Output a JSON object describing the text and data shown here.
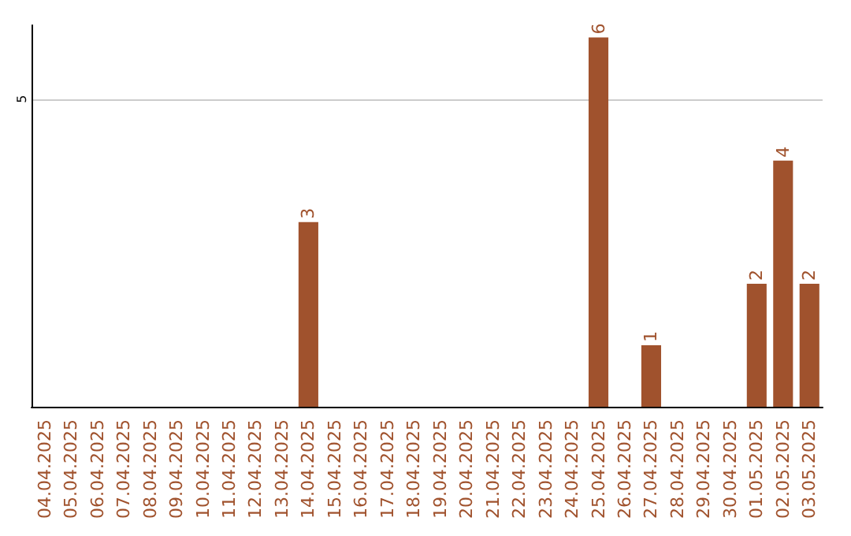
{
  "chart_data": {
    "type": "bar",
    "categories": [
      "04.04.2025",
      "05.04.2025",
      "06.04.2025",
      "07.04.2025",
      "08.04.2025",
      "09.04.2025",
      "10.04.2025",
      "11.04.2025",
      "12.04.2025",
      "13.04.2025",
      "14.04.2025",
      "15.04.2025",
      "16.04.2025",
      "17.04.2025",
      "18.04.2025",
      "19.04.2025",
      "20.04.2025",
      "21.04.2025",
      "22.04.2025",
      "23.04.2025",
      "24.04.2025",
      "25.04.2025",
      "26.04.2025",
      "27.04.2025",
      "28.04.2025",
      "29.04.2025",
      "30.04.2025",
      "01.05.2025",
      "02.05.2025",
      "03.05.2025"
    ],
    "values": [
      0,
      0,
      0,
      0,
      0,
      0,
      0,
      0,
      0,
      0,
      3,
      0,
      0,
      0,
      0,
      0,
      0,
      0,
      0,
      0,
      0,
      6,
      0,
      1,
      0,
      0,
      0,
      2,
      4,
      2
    ],
    "value_labels": [
      null,
      null,
      null,
      null,
      null,
      null,
      null,
      null,
      null,
      null,
      "3",
      null,
      null,
      null,
      null,
      null,
      null,
      null,
      null,
      null,
      null,
      "6",
      null,
      "1",
      null,
      null,
      null,
      "2",
      "4",
      "2"
    ],
    "color": "#a0522d",
    "ylim": [
      0,
      6.2
    ],
    "yticks": [
      {
        "value": 0,
        "label": null
      },
      5
    ],
    "grid": "y"
  }
}
